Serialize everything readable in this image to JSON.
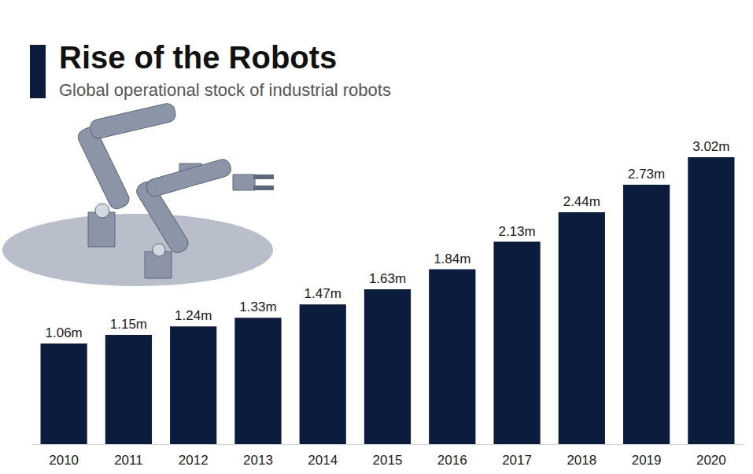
{
  "chart_data": {
    "type": "bar",
    "title": "Rise of the Robots",
    "subtitle": "Global operational stock of industrial robots",
    "categories": [
      "2010",
      "2011",
      "2012",
      "2013",
      "2014",
      "2015",
      "2016",
      "2017",
      "2018",
      "2019",
      "2020"
    ],
    "values": [
      1.06,
      1.15,
      1.24,
      1.33,
      1.47,
      1.63,
      1.84,
      2.13,
      2.44,
      2.73,
      3.02
    ],
    "value_labels": [
      "1.06m",
      "1.15m",
      "1.24m",
      "1.33m",
      "1.47m",
      "1.63m",
      "1.84m",
      "2.13m",
      "2.44m",
      "2.73m",
      "3.02m"
    ],
    "color": "#0b1c3d",
    "data_labels": true,
    "tick_labels": "x",
    "grid": false
  }
}
